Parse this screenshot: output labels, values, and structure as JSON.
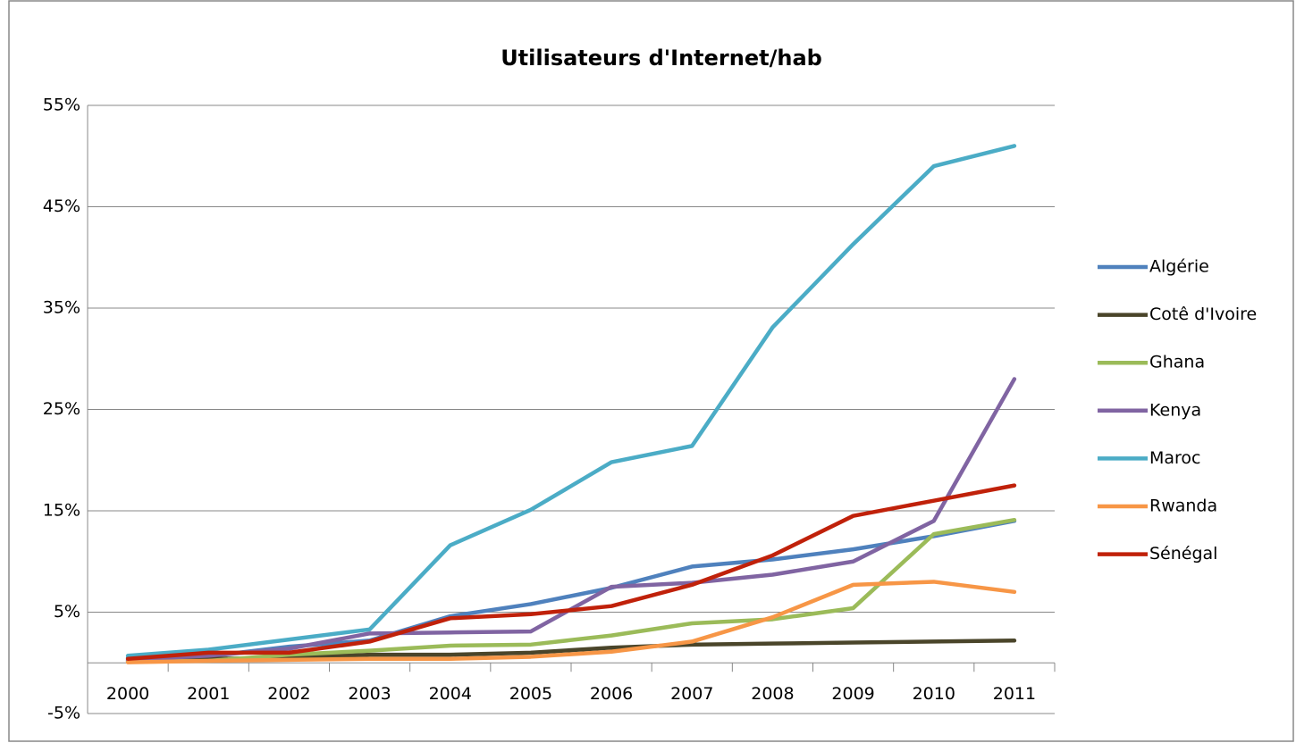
{
  "chart_data": {
    "type": "line",
    "title": "Utilisateurs d'Internet/hab",
    "categories": [
      "2000",
      "2001",
      "2002",
      "2003",
      "2004",
      "2005",
      "2006",
      "2007",
      "2008",
      "2009",
      "2010",
      "2011"
    ],
    "series": [
      {
        "name": "Algérie",
        "color": "#4f81bd",
        "values": [
          0.5,
          0.65,
          1.6,
          2.2,
          4.6,
          5.8,
          7.4,
          9.5,
          10.2,
          11.2,
          12.5,
          14.0
        ]
      },
      {
        "name": "Cotê d'Ivoire",
        "color": "#4a452a",
        "values": [
          0.2,
          0.4,
          0.5,
          0.8,
          0.8,
          1.0,
          1.5,
          1.8,
          1.9,
          2.0,
          2.1,
          2.2
        ]
      },
      {
        "name": "Ghana",
        "color": "#9bbb59",
        "values": [
          0.15,
          0.2,
          0.8,
          1.2,
          1.7,
          1.8,
          2.7,
          3.9,
          4.3,
          5.4,
          12.7,
          14.1
        ]
      },
      {
        "name": "Kenya",
        "color": "#8064a2",
        "values": [
          0.3,
          0.7,
          1.4,
          2.9,
          3.0,
          3.1,
          7.5,
          7.9,
          8.7,
          10.0,
          14.0,
          28.0
        ]
      },
      {
        "name": "Maroc",
        "color": "#4bacc6",
        "values": [
          0.7,
          1.3,
          2.3,
          3.3,
          11.6,
          15.1,
          19.8,
          21.4,
          33.1,
          41.3,
          49.0,
          51.0
        ]
      },
      {
        "name": "Rwanda",
        "color": "#f79646",
        "values": [
          0.06,
          0.2,
          0.3,
          0.4,
          0.4,
          0.6,
          1.1,
          2.1,
          4.5,
          7.7,
          8.0,
          7.0
        ]
      },
      {
        "name": "Sénégal",
        "color": "#c0210a",
        "values": [
          0.4,
          1.0,
          1.0,
          2.1,
          4.4,
          4.8,
          5.6,
          7.7,
          10.6,
          14.5,
          16.0,
          17.5
        ]
      }
    ],
    "ylim": [
      -5,
      55
    ],
    "yticks": [
      {
        "value": -5,
        "label": "-5%"
      },
      {
        "value": 5,
        "label": "5%"
      },
      {
        "value": 15,
        "label": "15%"
      },
      {
        "value": 25,
        "label": "25%"
      },
      {
        "value": 35,
        "label": "35%"
      },
      {
        "value": 45,
        "label": "45%"
      },
      {
        "value": 55,
        "label": "55%"
      }
    ],
    "grid": true,
    "legend": "right"
  }
}
